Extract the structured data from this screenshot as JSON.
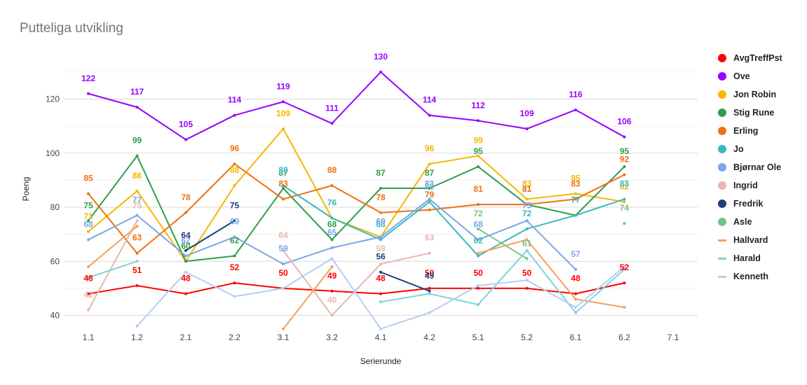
{
  "chart_data": {
    "type": "line",
    "title": "Putteliga utvikling",
    "xlabel": "Serierunde",
    "ylabel": "Poeng",
    "categories": [
      "1.1",
      "1.2",
      "2.1",
      "2.2",
      "3.1",
      "3.2",
      "4.1",
      "4.2",
      "5.1",
      "5.2",
      "6.1",
      "6.2",
      "7.1"
    ],
    "ylim": [
      36,
      138
    ],
    "yticks": [
      "40",
      "60",
      "80",
      "100",
      "120"
    ],
    "grid": true,
    "legend_position": "right",
    "series": [
      {
        "name": "AvgTreffPst",
        "color": "#ff0000",
        "values": [
          48,
          51,
          48,
          52,
          50,
          49,
          48,
          50,
          50,
          50,
          48,
          52,
          null
        ],
        "labeled": true
      },
      {
        "name": "Ove",
        "color": "#9900ff",
        "values": [
          122,
          117,
          105,
          114,
          119,
          111,
          130,
          114,
          112,
          109,
          116,
          106,
          null
        ],
        "labeled": true
      },
      {
        "name": "Jon Robin",
        "color": "#f6b700",
        "values": [
          71,
          86,
          60,
          88,
          109,
          76,
          69,
          96,
          99,
          83,
          85,
          82,
          null
        ],
        "labeled": true
      },
      {
        "name": "Stig Rune",
        "color": "#2e9e4d",
        "values": [
          75,
          99,
          60,
          62,
          87,
          68,
          87,
          87,
          95,
          81,
          77,
          95,
          null
        ],
        "labeled": true
      },
      {
        "name": "Erling",
        "color": "#f07010",
        "values": [
          85,
          63,
          78,
          96,
          83,
          88,
          78,
          79,
          81,
          81,
          83,
          92,
          null
        ],
        "labeled": true
      },
      {
        "name": "Jo",
        "color": "#3cb8c0",
        "values": [
          null,
          null,
          null,
          null,
          88,
          76,
          68,
          82,
          62,
          72,
          77,
          83,
          null
        ],
        "labeled": true
      },
      {
        "name": "Bjørnar Ole",
        "color": "#7aa6ea",
        "values": [
          68,
          77,
          62,
          69,
          59,
          65,
          69,
          83,
          68,
          75,
          57,
          null,
          null
        ],
        "labeled": true
      },
      {
        "name": "Ingrid",
        "color": "#e6b8ae",
        "values": [
          42,
          75,
          null,
          null,
          64,
          40,
          59,
          63,
          null,
          null,
          null,
          null,
          null
        ],
        "labeled": true
      },
      {
        "name": "Fredrik",
        "color": "#1c3f78",
        "values": [
          null,
          null,
          64,
          75,
          null,
          null,
          56,
          49,
          null,
          null,
          null,
          null,
          null
        ],
        "labeled": true
      },
      {
        "name": "Asle",
        "color": "#74c38a",
        "values": [
          null,
          null,
          null,
          null,
          null,
          null,
          null,
          null,
          72,
          61,
          null,
          74,
          null
        ],
        "labeled": true
      },
      {
        "name": "Hallvard",
        "color": "#f6a05a",
        "values": [
          58,
          73,
          null,
          null,
          35,
          58,
          null,
          null,
          63,
          68,
          46,
          43,
          null
        ],
        "labeled": false
      },
      {
        "name": "Harald",
        "color": "#7fd3d8",
        "values": [
          54,
          60,
          null,
          null,
          null,
          null,
          45,
          48,
          44,
          64,
          41,
          57,
          null
        ],
        "labeled": false
      },
      {
        "name": "Kenneth",
        "color": "#b5cdf3",
        "values": [
          null,
          36,
          56,
          47,
          50,
          61,
          35,
          41,
          51,
          53,
          43,
          58,
          null
        ],
        "labeled": false
      }
    ]
  }
}
